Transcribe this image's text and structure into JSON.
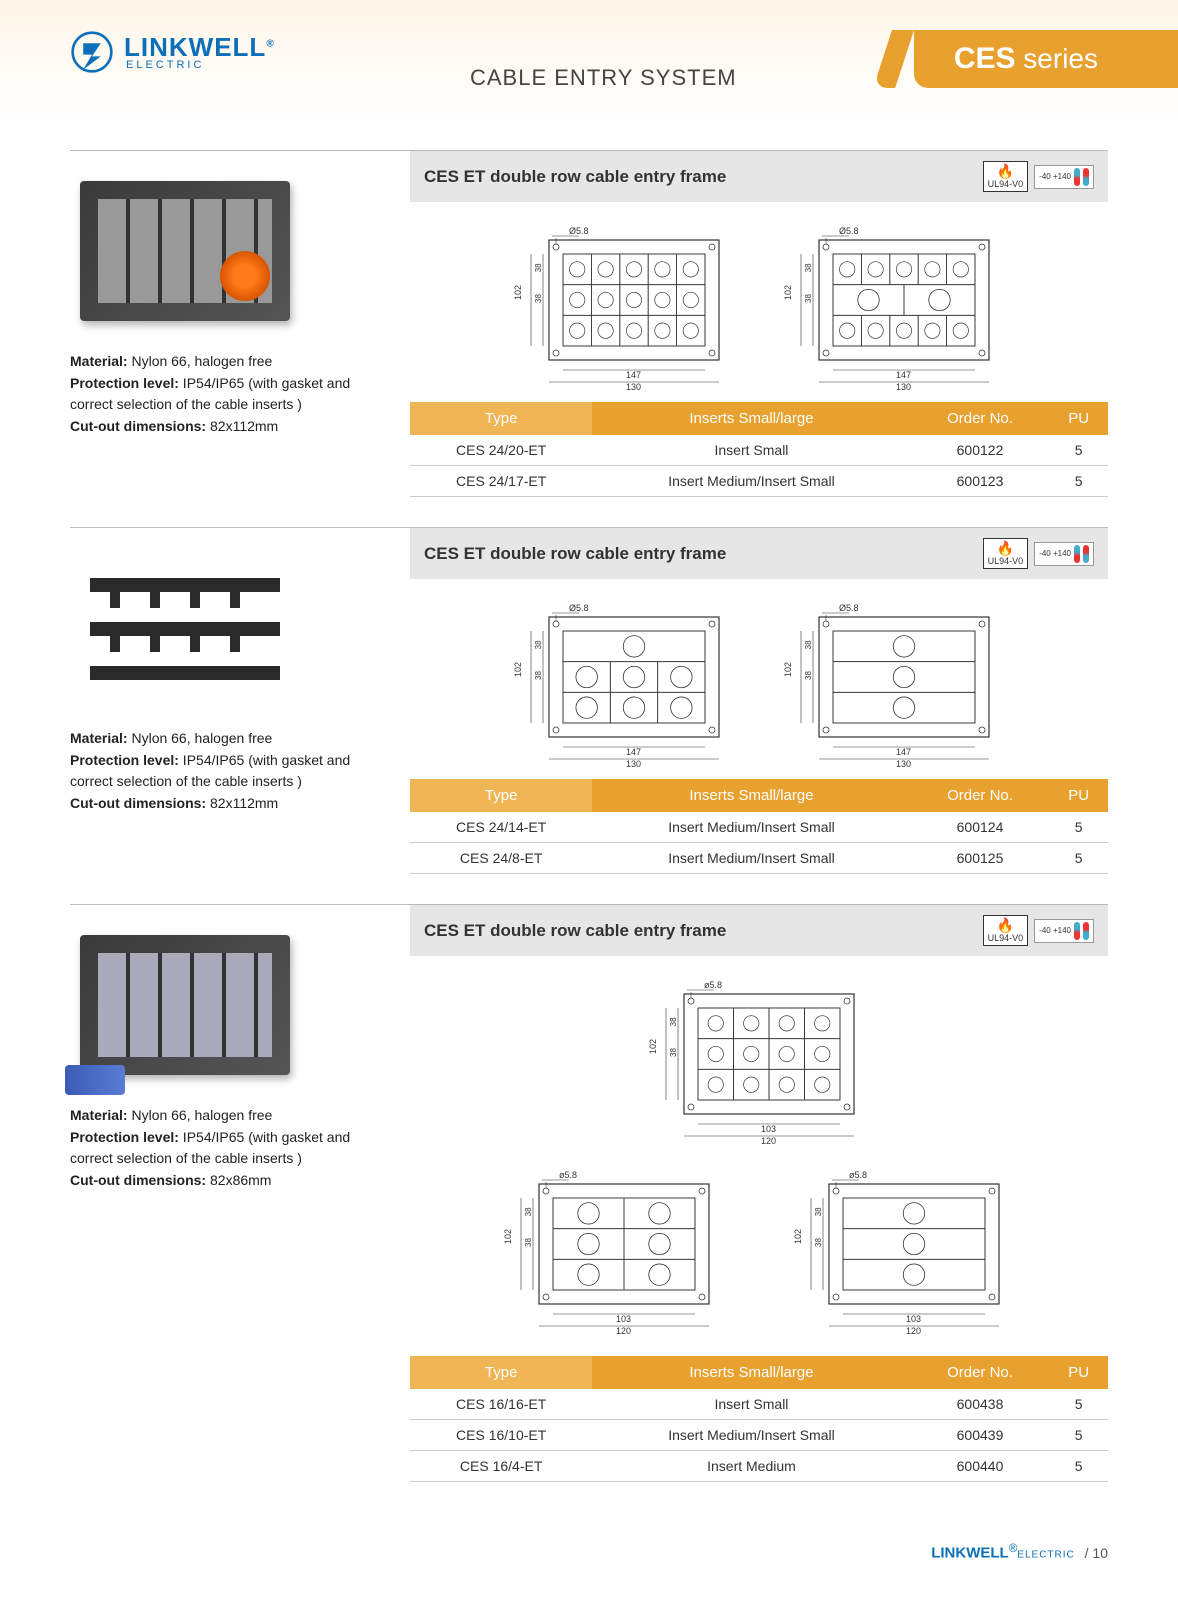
{
  "brand": {
    "name": "LINKWELL",
    "sub": "ELECTRIC",
    "reg": "®",
    "logo_color": "#0d6fb8"
  },
  "page_title": "CABLE ENTRY SYSTEM",
  "series_tab": {
    "prefix": "CES",
    "suffix": "series"
  },
  "badges": {
    "ul": "UL94-V0",
    "temp_low": "-40",
    "temp_high": "+140",
    "temp_unit": "°C"
  },
  "colors": {
    "accent": "#e8a12e",
    "accent_light": "#f0b555",
    "header_bar": "#e6e6e6",
    "brand": "#0d6fb8",
    "border": "#cccccc"
  },
  "table_headers": [
    "Type",
    "Inserts Small/large",
    "Order No.",
    "PU"
  ],
  "sections": [
    {
      "title": "CES ET double row cable entry frame",
      "specs": [
        {
          "label": "Material:",
          "value": "Nylon 66, halogen free"
        },
        {
          "label": "Protection level:",
          "value": "IP54/IP65 (with gasket and correct selection of the cable inserts )"
        },
        {
          "label": "Cut-out dimensions:",
          "value": "82x112mm"
        }
      ],
      "diagrams": {
        "count": 2,
        "rows": 3,
        "cols_sets": [
          [
            5,
            5,
            5
          ],
          [
            5,
            2,
            5
          ]
        ],
        "w": "130",
        "w2": "147",
        "h": "102",
        "rh": "38",
        "hole": "Ø5.8",
        "h_top": "13"
      },
      "rows": [
        {
          "type": "CES 24/20-ET",
          "insert": "Insert Small",
          "order": "600122",
          "pu": "5"
        },
        {
          "type": "CES 24/17-ET",
          "insert": "Insert Medium/Insert Small",
          "order": "600123",
          "pu": "5"
        }
      ]
    },
    {
      "title": "CES ET double row cable entry frame",
      "specs": [
        {
          "label": "Material:",
          "value": "Nylon 66, halogen free"
        },
        {
          "label": "Protection level:",
          "value": "IP54/IP65 (with gasket and correct selection of the cable inserts )"
        },
        {
          "label": "Cut-out dimensions:",
          "value": "82x112mm"
        }
      ],
      "diagrams": {
        "count": 2,
        "rows": 3,
        "cols_sets": [
          [
            1,
            3,
            3
          ],
          [
            1,
            1,
            1
          ]
        ],
        "medium": true,
        "w": "130",
        "w2": "147",
        "h": "102",
        "rh": "38",
        "hole": "Ø5.8",
        "h_top": "13"
      },
      "rows": [
        {
          "type": "CES 24/14-ET",
          "insert": "Insert Medium/Insert Small",
          "order": "600124",
          "pu": "5"
        },
        {
          "type": "CES 24/8-ET",
          "insert": "Insert Medium/Insert Small",
          "order": "600125",
          "pu": "5"
        }
      ]
    },
    {
      "title": "CES ET double row cable entry frame",
      "specs": [
        {
          "label": "Material:",
          "value": "Nylon 66, halogen free"
        },
        {
          "label": "Protection level:",
          "value": "IP54/IP65 (with gasket and correct selection of the cable inserts )"
        },
        {
          "label": "Cut-out dimensions:",
          "value": "82x86mm"
        }
      ],
      "diagrams": {
        "count": 3,
        "rows": 3,
        "cols_sets": [
          [
            4,
            4,
            4
          ],
          [
            2,
            2,
            2
          ],
          [
            1,
            1,
            1
          ]
        ],
        "w": "120",
        "w2": "103",
        "h": "102",
        "rh": "38",
        "hole": "ø5.8"
      },
      "rows": [
        {
          "type": "CES 16/16-ET",
          "insert": "Insert Small",
          "order": "600438",
          "pu": "5"
        },
        {
          "type": "CES 16/10-ET",
          "insert": "Insert Medium/Insert Small",
          "order": "600439",
          "pu": "5"
        },
        {
          "type": "CES 16/4-ET",
          "insert": "Insert Medium",
          "order": "600440",
          "pu": "5"
        }
      ]
    }
  ],
  "footer": {
    "brand": "LINKWELL",
    "sub": "ELECTRIC",
    "page": "10"
  }
}
